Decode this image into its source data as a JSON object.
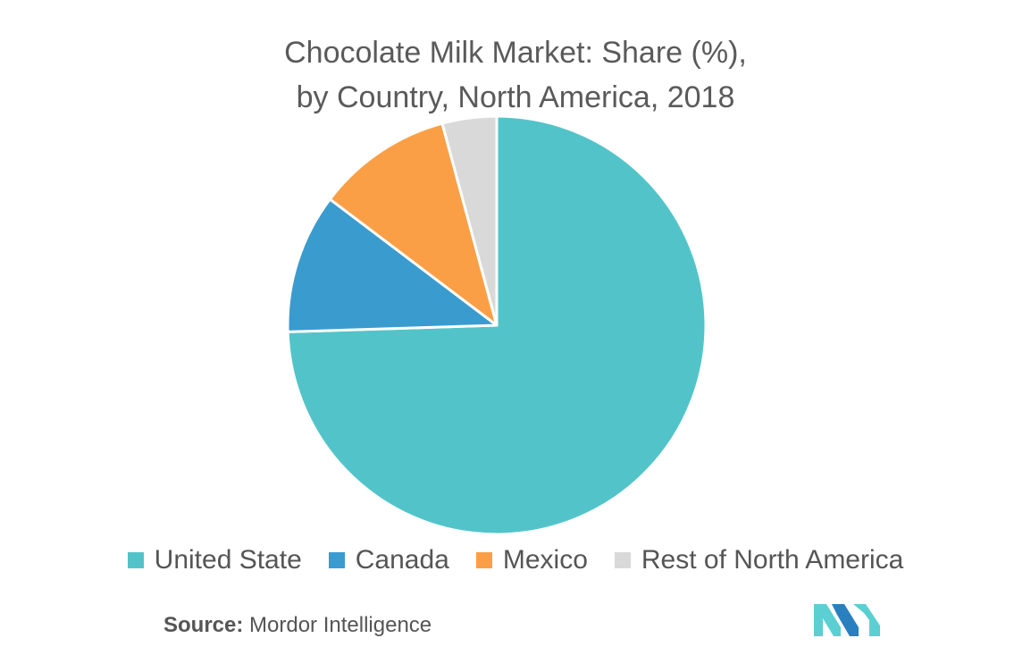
{
  "title_line1": "Chocolate Milk Market: Share (%),",
  "title_line2": "by Country, North America, 2018",
  "source_label": "Source:",
  "source_text": "Mordor Intelligence",
  "colors": {
    "united_state": "#52c4c9",
    "canada": "#3a9bcf",
    "mexico": "#fb9f46",
    "rest": "#d9d9d9",
    "logo_teal": "#5ccfd3",
    "logo_blue": "#2a7fbf"
  },
  "chart_data": {
    "type": "pie",
    "title": "Chocolate Milk Market: Share (%), by Country, North America, 2018",
    "legend_position": "bottom",
    "start_angle_deg": 0,
    "direction": "clockwise",
    "slices": [
      {
        "label": "United State",
        "value": 74.5,
        "color": "#52c4c9"
      },
      {
        "label": "Canada",
        "value": 10.8,
        "color": "#3a9bcf"
      },
      {
        "label": "Mexico",
        "value": 10.5,
        "color": "#fb9f46"
      },
      {
        "label": "Rest of North America",
        "value": 4.2,
        "color": "#d9d9d9"
      }
    ]
  }
}
